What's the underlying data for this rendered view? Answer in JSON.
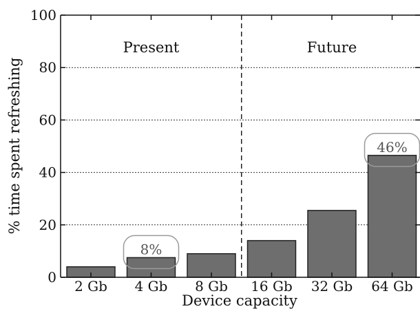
{
  "chart_data": {
    "type": "bar",
    "categories": [
      "2 Gb",
      "4 Gb",
      "8 Gb",
      "16 Gb",
      "32 Gb",
      "64 Gb"
    ],
    "values": [
      4,
      7.5,
      9,
      14,
      25.5,
      46.5
    ],
    "xlabel": "Device capacity",
    "ylabel": "% time spent refreshing",
    "ylim": [
      0,
      100
    ],
    "yticks": [
      0,
      20,
      40,
      60,
      80,
      100
    ],
    "grid": "horizontal dotted",
    "regions": [
      {
        "label": "Present",
        "categories": [
          "2 Gb",
          "4 Gb",
          "8 Gb"
        ]
      },
      {
        "label": "Future",
        "categories": [
          "16 Gb",
          "32 Gb",
          "64 Gb"
        ]
      }
    ],
    "annotations": [
      {
        "category": "4 Gb",
        "text": "8%"
      },
      {
        "category": "64 Gb",
        "text": "46%"
      }
    ],
    "colors": {
      "bar": "#6e6e6e",
      "bar_edge": "#222222",
      "axis": "#111111",
      "grid": "#333333",
      "annotation_box": "#9a9a9a",
      "annotation_text": "#555555"
    }
  }
}
